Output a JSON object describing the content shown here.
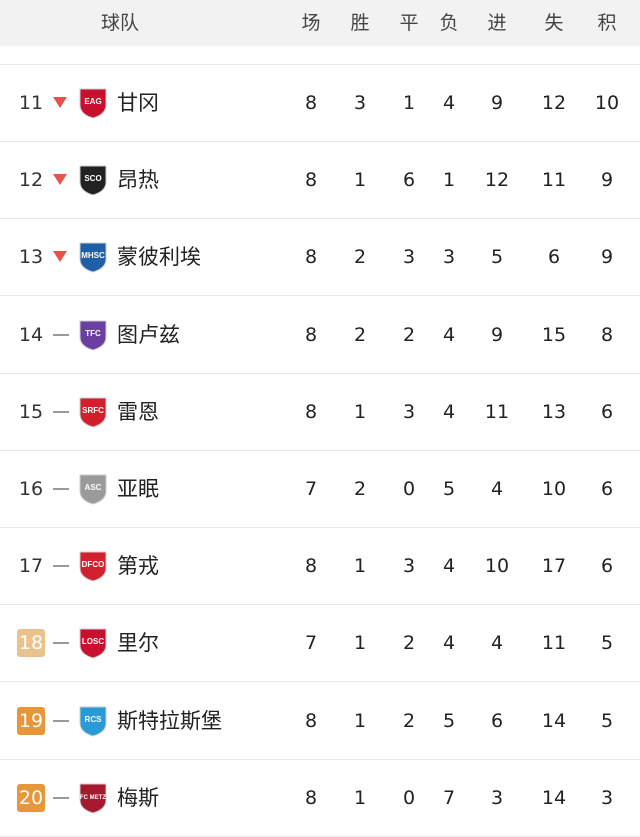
{
  "header": {
    "team": "球队",
    "played": "场",
    "won": "胜",
    "drawn": "平",
    "lost": "负",
    "gf": "进",
    "ga": "失",
    "pts": "积"
  },
  "colors": {
    "down": "#e5534b",
    "badge_light": "#e9c28c",
    "badge_dark": "#e8963a"
  },
  "rows": [
    {
      "rank": "11",
      "trend": "down",
      "name": "甘冈",
      "logo": "EAG",
      "logo_color": "#c8102e",
      "played": "8",
      "won": "3",
      "drawn": "1",
      "lost": "4",
      "gf": "9",
      "ga": "12",
      "pts": "10"
    },
    {
      "rank": "12",
      "trend": "down",
      "name": "昂热",
      "logo": "SCO",
      "logo_color": "#222222",
      "played": "8",
      "won": "1",
      "drawn": "6",
      "lost": "1",
      "gf": "12",
      "ga": "11",
      "pts": "9"
    },
    {
      "rank": "13",
      "trend": "down",
      "name": "蒙彼利埃",
      "logo": "MHSC",
      "logo_color": "#1f5fa8",
      "played": "8",
      "won": "2",
      "drawn": "3",
      "lost": "3",
      "gf": "5",
      "ga": "6",
      "pts": "9"
    },
    {
      "rank": "14",
      "trend": "same",
      "name": "图卢兹",
      "logo": "TFC",
      "logo_color": "#6b3fa0",
      "played": "8",
      "won": "2",
      "drawn": "2",
      "lost": "4",
      "gf": "9",
      "ga": "15",
      "pts": "8"
    },
    {
      "rank": "15",
      "trend": "same",
      "name": "雷恩",
      "logo": "SRFC",
      "logo_color": "#d21f2b",
      "played": "8",
      "won": "1",
      "drawn": "3",
      "lost": "4",
      "gf": "11",
      "ga": "13",
      "pts": "6"
    },
    {
      "rank": "16",
      "trend": "same",
      "name": "亚眠",
      "logo": "ASC",
      "logo_color": "#9a9a9a",
      "played": "7",
      "won": "2",
      "drawn": "0",
      "lost": "5",
      "gf": "4",
      "ga": "10",
      "pts": "6"
    },
    {
      "rank": "17",
      "trend": "same",
      "name": "第戎",
      "logo": "DFCO",
      "logo_color": "#d3202f",
      "played": "8",
      "won": "1",
      "drawn": "3",
      "lost": "4",
      "gf": "10",
      "ga": "17",
      "pts": "6"
    },
    {
      "rank": "18",
      "trend": "same",
      "badge": "light",
      "name": "里尔",
      "logo": "LOSC",
      "logo_color": "#c8102e",
      "played": "7",
      "won": "1",
      "drawn": "2",
      "lost": "4",
      "gf": "4",
      "ga": "11",
      "pts": "5"
    },
    {
      "rank": "19",
      "trend": "same",
      "badge": "dark",
      "name": "斯特拉斯堡",
      "logo": "RCS",
      "logo_color": "#2a9ad6",
      "played": "8",
      "won": "1",
      "drawn": "2",
      "lost": "5",
      "gf": "6",
      "ga": "14",
      "pts": "5"
    },
    {
      "rank": "20",
      "trend": "same",
      "badge": "dark",
      "name": "梅斯",
      "logo": "FC METZ",
      "logo_color": "#a6192e",
      "played": "8",
      "won": "1",
      "drawn": "0",
      "lost": "7",
      "gf": "3",
      "ga": "14",
      "pts": "3"
    }
  ]
}
